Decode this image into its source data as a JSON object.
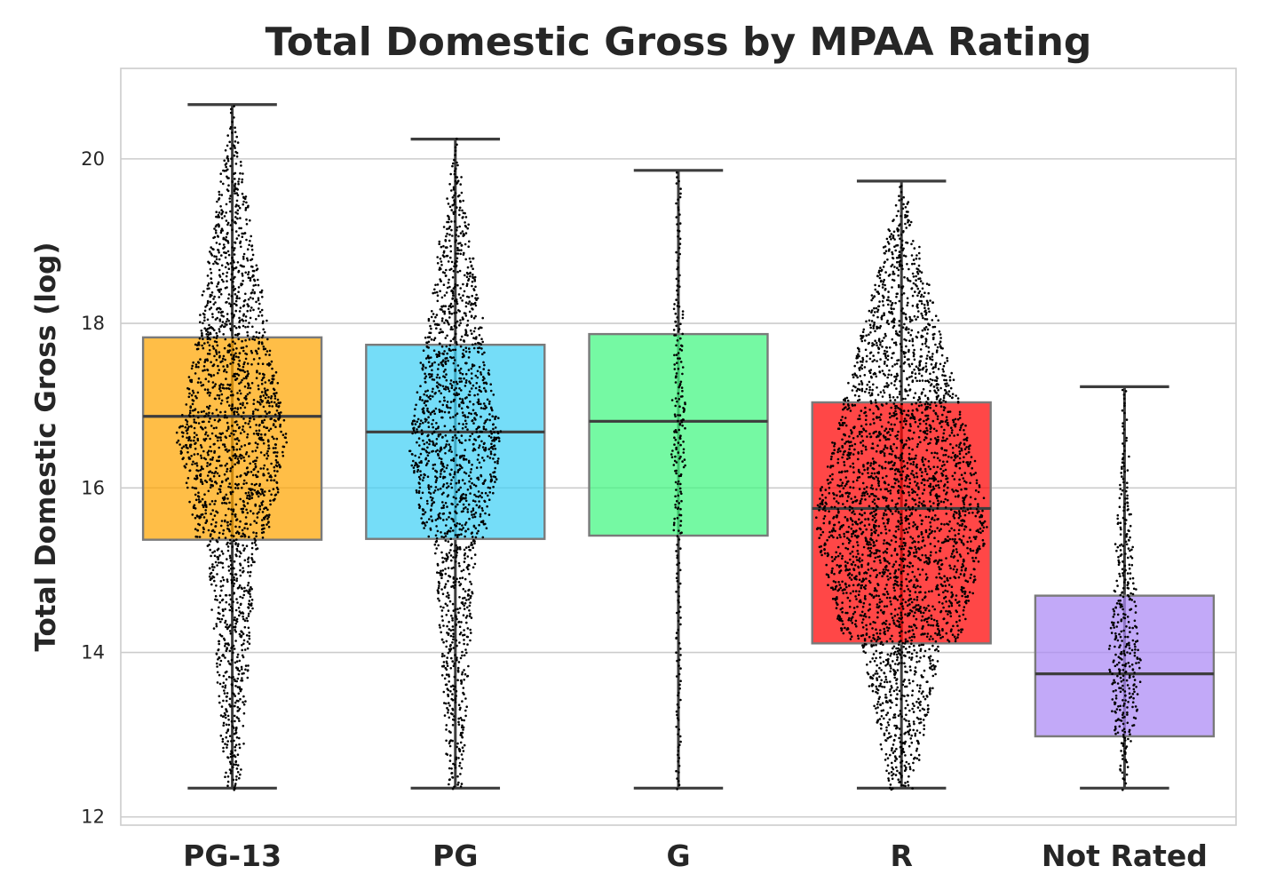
{
  "chart_data": {
    "type": "box",
    "title": "Total Domestic Gross by MPAA Rating",
    "xlabel": "",
    "ylabel": "Total Domestic Gross (log)",
    "ylim": [
      11.9,
      21.1
    ],
    "yticks": [
      "12",
      "14",
      "16",
      "18",
      "20"
    ],
    "grid": "horizontal",
    "overlay": "swarm",
    "categories": [
      "PG-13",
      "PG",
      "G",
      "R",
      "Not Rated"
    ],
    "boxes": [
      {
        "category": "PG-13",
        "whisker_low": 12.35,
        "q1": 15.37,
        "median": 16.87,
        "q3": 17.83,
        "whisker_high": 20.66,
        "color": "#ffa500"
      },
      {
        "category": "PG",
        "whisker_low": 12.35,
        "q1": 15.38,
        "median": 16.68,
        "q3": 17.74,
        "whisker_high": 20.24,
        "color": "#40d0f5"
      },
      {
        "category": "G",
        "whisker_low": 12.35,
        "q1": 15.42,
        "median": 16.81,
        "q3": 17.87,
        "whisker_high": 19.86,
        "color": "#40f780"
      },
      {
        "category": "R",
        "whisker_low": 12.35,
        "q1": 14.11,
        "median": 15.75,
        "q3": 17.04,
        "whisker_high": 19.73,
        "color": "#ff0000"
      },
      {
        "category": "Not Rated",
        "whisker_low": 12.35,
        "q1": 12.98,
        "median": 13.74,
        "q3": 14.69,
        "whisker_high": 17.23,
        "color": "#ab88f5"
      }
    ]
  }
}
